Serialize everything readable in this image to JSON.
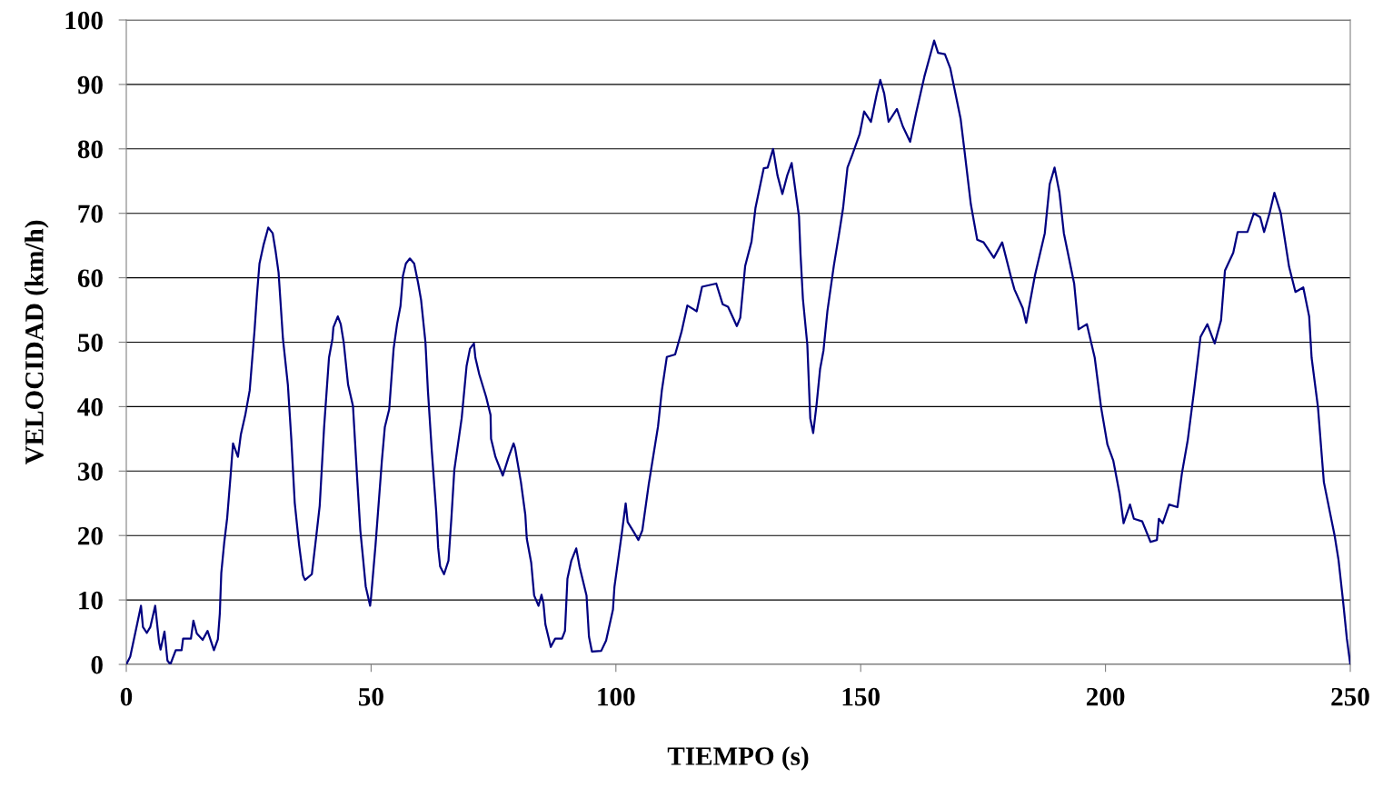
{
  "chart_data": {
    "type": "line",
    "xlabel": "TIEMPO (s)",
    "ylabel": "VELOCIDAD (km/h)",
    "xlim": [
      0,
      250
    ],
    "xticks": [
      0,
      50,
      100,
      150,
      200,
      250
    ],
    "ylim": [
      0,
      100
    ],
    "yticks": [
      0,
      10,
      20,
      30,
      40,
      50,
      60,
      70,
      80,
      90,
      100
    ],
    "grid": "y",
    "marker": "none",
    "line_style": "solid",
    "series": [
      {
        "color": "#000080",
        "x": [
          0,
          0.8,
          2.2,
          3.0,
          3.4,
          4.2,
          4.9,
          5.9,
          6.7,
          7.0,
          7.8,
          8.4,
          9.0,
          10.1,
          11.3,
          11.6,
          13.2,
          13.7,
          14.4,
          15.6,
          16.6,
          17.9,
          18.7,
          19.1,
          19.4,
          20.0,
          20.6,
          21.3,
          21.8,
          22.8,
          23.4,
          24.3,
          25.2,
          26.2,
          26.7,
          27.2,
          28.0,
          29.0,
          29.9,
          30.5,
          31.1,
          32.0,
          33.0,
          33.7,
          34.4,
          35.3,
          36.1,
          36.5,
          37.9,
          38.8,
          39.5,
          40.4,
          41.4,
          42.1,
          42.3,
          43.2,
          43.8,
          44.4,
          45.3,
          46.3,
          47.2,
          47.8,
          48.4,
          48.9,
          49.8,
          50.0,
          50.9,
          52.2,
          52.8,
          53.7,
          54.6,
          55.3,
          56.0,
          56.5,
          57.1,
          57.9,
          58.8,
          59.6,
          60.2,
          61.1,
          61.6,
          62.4,
          63.3,
          63.7,
          64.1,
          64.9,
          65.8,
          66.4,
          67.0,
          67.9,
          68.5,
          69.5,
          70.2,
          71.0,
          71.3,
          72.1,
          73.5,
          74.4,
          74.5,
          75.4,
          76.9,
          78.1,
          79.1,
          79.4,
          80.6,
          81.5,
          81.8,
          82.7,
          83.3,
          84.2,
          84.8,
          85.2,
          85.6,
          86.7,
          87.6,
          89.0,
          89.6,
          90.1,
          90.9,
          91.9,
          92.6,
          94.0,
          94.5,
          95.1,
          97.0,
          98.0,
          99.4,
          99.7,
          101.2,
          102.0,
          102.4,
          103.6,
          104.6,
          105.4,
          106.7,
          107.5,
          108.6,
          109.4,
          110.4,
          112.1,
          113.4,
          114.6,
          116.5,
          117.6,
          120.5,
          121.8,
          122.9,
          124.7,
          125.4,
          126.4,
          127.7,
          128.5,
          130.2,
          131.0,
          132.1,
          133.0,
          134.0,
          135.0,
          135.9,
          137.4,
          137.7,
          138.2,
          139.1,
          139.7,
          140.3,
          141.0,
          141.7,
          142.4,
          143.2,
          144.5,
          145.6,
          146.4,
          147.3,
          148.3,
          149.8,
          150.7,
          152.1,
          153.3,
          154.0,
          154.8,
          155.7,
          157.4,
          158.6,
          160.1,
          161.3,
          163.0,
          165.0,
          165.8,
          167.2,
          168.3,
          170.4,
          171.2,
          172.5,
          173.8,
          175.1,
          177.2,
          178.9,
          180.6,
          181.4,
          183.1,
          183.8,
          185.6,
          187.6,
          188.6,
          189.6,
          190.6,
          191.5,
          193.6,
          194.5,
          196.2,
          197.8,
          199.1,
          200.4,
          201.6,
          202.9,
          203.7,
          205.0,
          205.8,
          207.5,
          209.2,
          210.5,
          210.9,
          211.7,
          213.0,
          214.7,
          215.6,
          216.8,
          218.1,
          219.4,
          220.8,
          222.3,
          223.6,
          224.4,
          226.1,
          227.0,
          229.0,
          230.3,
          231.6,
          232.4,
          233.5,
          234.5,
          235.8,
          237.5,
          238.8,
          240.4,
          241.6,
          242.1,
          243.4,
          244.6,
          246.8,
          247.6,
          248.5,
          249.3,
          250
        ],
        "values": [
          0,
          1.2,
          6.2,
          9.1,
          5.8,
          4.9,
          5.8,
          9.1,
          3.4,
          2.3,
          5.1,
          0.6,
          0,
          2.2,
          2.2,
          4.0,
          4.0,
          6.8,
          4.8,
          3.8,
          5.2,
          2.2,
          3.9,
          7.9,
          14.2,
          18.9,
          22.7,
          29.3,
          34.3,
          32.2,
          35.7,
          38.7,
          42.5,
          51.9,
          57.5,
          62.2,
          65,
          67.8,
          66.9,
          64.1,
          60.8,
          50.5,
          43.4,
          35,
          25.1,
          18.5,
          13.8,
          13.1,
          14,
          19.9,
          24.6,
          36.8,
          47.6,
          50.5,
          52.3,
          54,
          52.8,
          50,
          43.4,
          40.1,
          28.3,
          20.8,
          16.1,
          12.1,
          9.1,
          10.5,
          18.5,
          31.6,
          36.8,
          39.6,
          49,
          52.8,
          55.6,
          60.3,
          62.2,
          63,
          62.2,
          59.2,
          56.6,
          50,
          42.5,
          33.1,
          23.7,
          18.1,
          15.2,
          14,
          16.1,
          22.7,
          30.2,
          35,
          38.2,
          46.3,
          49,
          49.8,
          47.6,
          45,
          41.5,
          38.7,
          35,
          32.2,
          29.3,
          32.2,
          34.3,
          33.6,
          28.3,
          23.2,
          19.5,
          15.8,
          10.7,
          9.1,
          10.8,
          9.5,
          6.2,
          2.7,
          4,
          4,
          5.2,
          13.3,
          16.1,
          18,
          15.1,
          10.7,
          4.3,
          2.0,
          2.1,
          3.7,
          8.5,
          12,
          20.3,
          25.0,
          22.1,
          20.6,
          19.3,
          20.8,
          27.9,
          31.7,
          36.9,
          42.6,
          47.7,
          48.1,
          51.6,
          55.7,
          54.8,
          58.6,
          59.1,
          55.9,
          55.5,
          52.5,
          53.8,
          61.8,
          65.6,
          70.8,
          77,
          77.1,
          80,
          75.9,
          73,
          75.9,
          77.8,
          69.5,
          63.8,
          56.7,
          49.6,
          38.2,
          35.9,
          40.4,
          45.8,
          48.7,
          54.8,
          61.8,
          66.9,
          70.8,
          77.1,
          79.1,
          82.3,
          85.8,
          84.2,
          88.6,
          90.7,
          88.6,
          84.2,
          86.2,
          83.5,
          81.1,
          85.5,
          91.2,
          96.8,
          94.9,
          94.7,
          92.5,
          84.7,
          79.7,
          71.4,
          65.9,
          65.5,
          63.1,
          65.5,
          60.4,
          58.2,
          55.3,
          53,
          60.4,
          66.9,
          74.5,
          77.1,
          73.2,
          66.9,
          59.1,
          52,
          52.8,
          47.6,
          39.9,
          34.1,
          31.6,
          26.4,
          21.9,
          24.8,
          22.6,
          22.2,
          19,
          19.3,
          22.6,
          21.9,
          24.8,
          24.4,
          29.6,
          34.8,
          42.5,
          50.8,
          52.8,
          49.8,
          53.4,
          61.1,
          63.9,
          67.1,
          67.1,
          70,
          69.4,
          67.1,
          70,
          73.2,
          70,
          61.7,
          57.8,
          58.5,
          54,
          47.6,
          39.9,
          28.3,
          20,
          16.2,
          10,
          4,
          0
        ]
      }
    ]
  }
}
